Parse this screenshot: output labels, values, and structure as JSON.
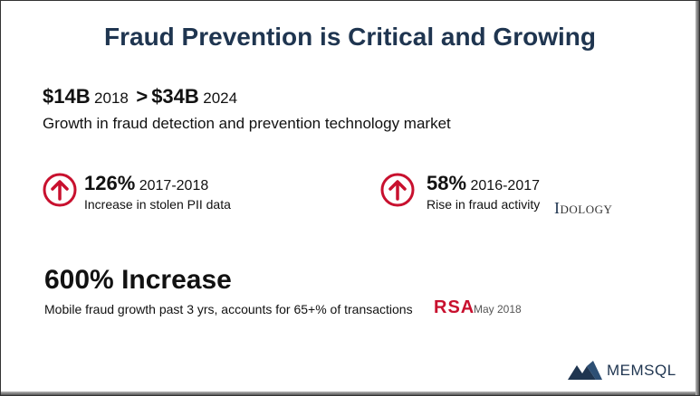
{
  "title": "Fraud Prevention is Critical and Growing",
  "market": {
    "value_2018": "$14B",
    "year_2018": "2018",
    "separator": ">",
    "value_2024": "$34B",
    "year_2024": "2024",
    "description": "Growth in fraud detection and prevention technology market"
  },
  "stats": [
    {
      "percent": "126%",
      "range": "2017-2018",
      "description": "Increase in stolen PII data"
    },
    {
      "percent": "58%",
      "range": "2016-2017",
      "description": "Rise in fraud activity"
    }
  ],
  "idology": {
    "initial": "I",
    "rest": "DOLOGY"
  },
  "mobile": {
    "headline": "600% Increase",
    "description": "Mobile fraud growth past 3 yrs, accounts for 65+% of transactions",
    "source": "RSA",
    "date": "May 2018"
  },
  "brand": {
    "name": "MEMSQL"
  },
  "colors": {
    "title": "#1f3550",
    "accent": "#c8102e"
  }
}
